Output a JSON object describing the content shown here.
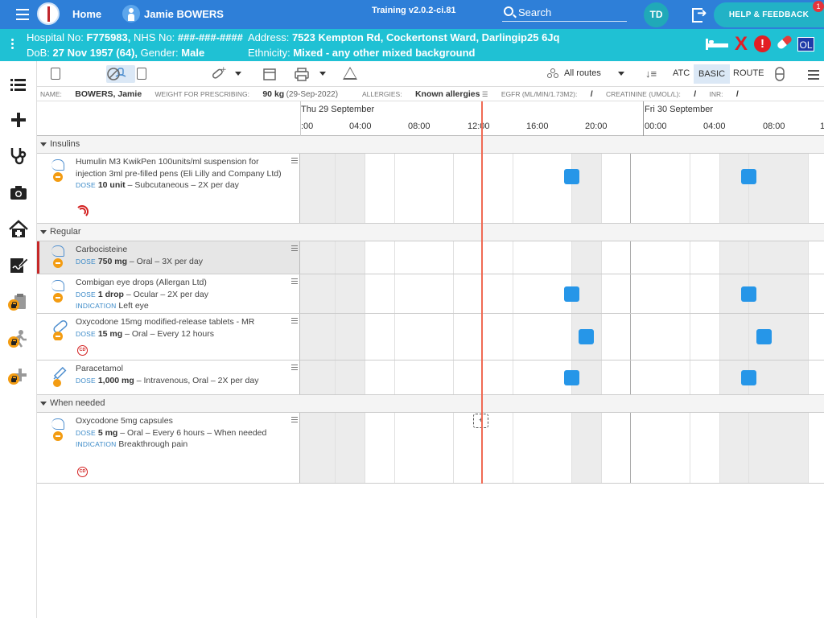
{
  "topbar": {
    "home_label": "Home",
    "patient_name": "Jamie BOWERS",
    "version": "Training v2.0.2-ci.81",
    "search_label": "Search",
    "avatar_initials": "TD",
    "help_label": "HELP & FEEDBACK",
    "notification_count": "1"
  },
  "patient": {
    "hospital_no_label": "Hospital No:",
    "hospital_no": "F775983,",
    "nhs_no_label": "NHS No:",
    "nhs_no": "###-###-####",
    "address_label": "Address:",
    "address": "7523 Kempton Rd, Cockertonst Ward, Darlingip25 6Jq",
    "dob_label": "DoB:",
    "dob": "27 Nov 1957 (64),",
    "gender_label": "Gender:",
    "gender": "Male",
    "ethnicity_label": "Ethnicity:",
    "ethnicity": "Mixed - any other mixed background",
    "ol_badge": "OL"
  },
  "toolbar": {
    "routes_label": "All routes",
    "atc_label": "ATC",
    "basic_label": "BASIC",
    "route_label": "ROUTE"
  },
  "infobar": {
    "name_label": "NAME:",
    "name": "BOWERS, Jamie",
    "weight_label": "WEIGHT FOR PRESCRIBING:",
    "weight": "90 kg",
    "weight_date": "(29-Sep-2022)",
    "allergies_label": "ALLERGIES:",
    "allergies": "Known allergies",
    "egfr_label": "EGFR (ML/MIN/1.73M2):",
    "egfr": "/",
    "creatinine_label": "CREATININE (UMOL/L):",
    "creatinine": "/",
    "inr_label": "INR:",
    "inr": "/"
  },
  "timeline": {
    "days": [
      "Thu 29 September",
      "Fri 30 September"
    ],
    "hours": [
      ":00",
      "04:00",
      "08:00",
      "12:00",
      "16:00",
      "20:00",
      "00:00",
      "04:00",
      "08:00",
      "1"
    ]
  },
  "sections": [
    {
      "label": "Insulins"
    },
    {
      "label": "Regular"
    },
    {
      "label": "When needed"
    }
  ],
  "medications": [
    {
      "name": "Humulin M3 KwikPen 100units/ml suspension for injection 3ml pre-filled pens (Eli Lilly and Company Ltd)",
      "dose_label": "DOSE",
      "dose": "10 unit",
      "route_freq": "– Subcutaneous – 2X per day",
      "doses_at_hours": [
        20,
        32
      ]
    },
    {
      "name": "Carbocisteine",
      "dose_label": "DOSE",
      "dose": "750 mg",
      "route_freq": "– Oral – 3X per day",
      "doses_at_hours": []
    },
    {
      "name": "Combigan eye drops (Allergan Ltd)",
      "dose_label": "DOSE",
      "dose": "1 drop",
      "route_freq": "– Ocular – 2X per day",
      "indication_label": "INDICATION",
      "indication": "Left eye",
      "doses_at_hours": [
        20,
        32
      ]
    },
    {
      "name": "Oxycodone 15mg modified-release tablets - MR",
      "dose_label": "DOSE",
      "dose": "15 mg",
      "route_freq": "– Oral – Every 12 hours",
      "cd_badge": "CD",
      "doses_at_hours": [
        21,
        33
      ]
    },
    {
      "name": "Paracetamol",
      "dose_label": "DOSE",
      "dose": "1,000 mg",
      "route_freq": "– Intravenous, Oral – 2X per day",
      "doses_at_hours": [
        20,
        32
      ]
    },
    {
      "name": "Oxycodone 5mg capsules",
      "dose_label": "DOSE",
      "dose": "5 mg",
      "route_freq": "– Oral – Every 6 hours – When needed",
      "indication_label": "INDICATION",
      "indication": "Breakthrough pain",
      "cd_badge": "CD",
      "prn_add": "+"
    }
  ],
  "colors": {
    "topbar": "#2e7fd8",
    "patient_bar": "#1fc1d4",
    "dose_marker": "#2696e8",
    "now_line": "#f06a54"
  }
}
